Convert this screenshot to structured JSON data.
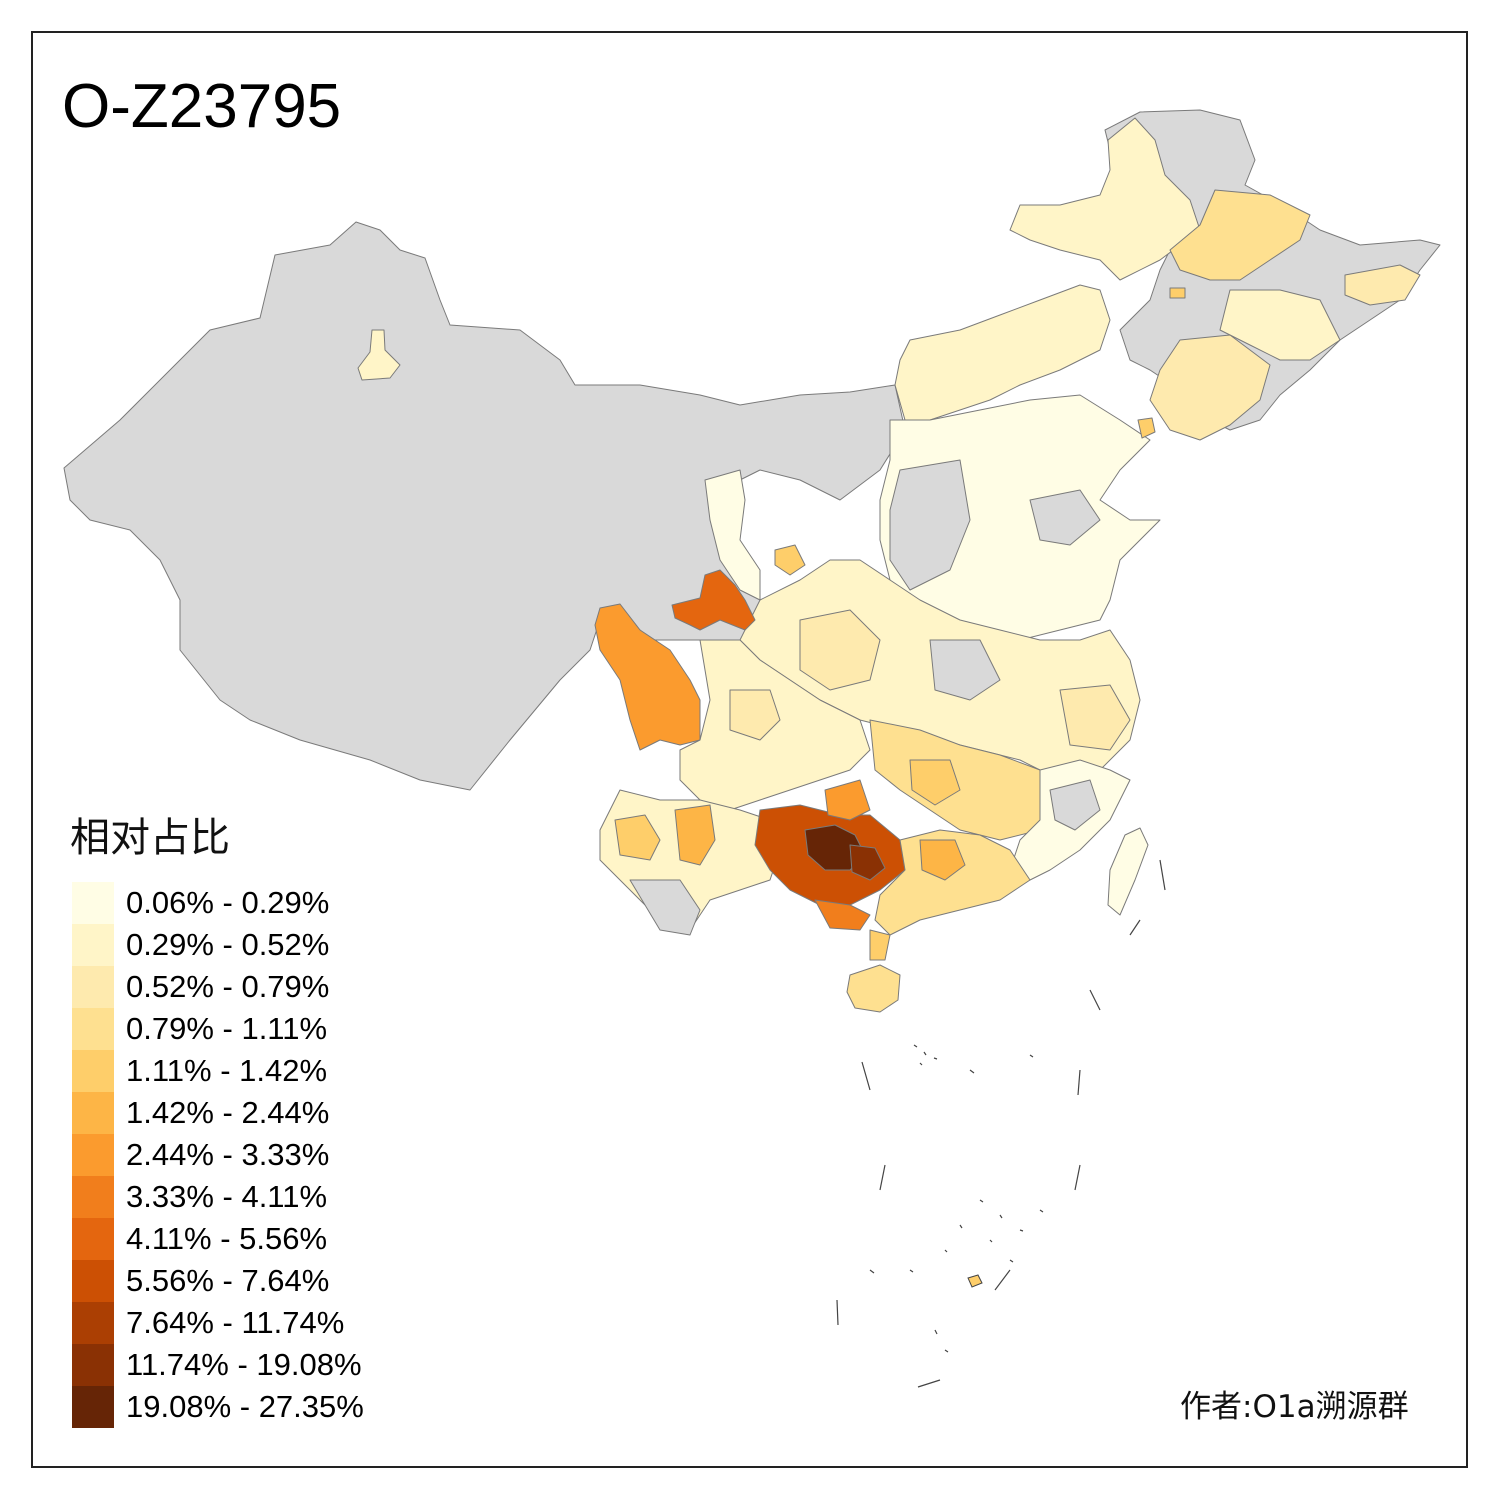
{
  "title": "O-Z23795",
  "legend": {
    "title": "相对占比",
    "classes": [
      {
        "label": "0.06% - 0.29%",
        "color": "#fffde5"
      },
      {
        "label": "0.29% - 0.52%",
        "color": "#fff5c8"
      },
      {
        "label": "0.52% - 0.79%",
        "color": "#feeaae"
      },
      {
        "label": "0.79% - 1.11%",
        "color": "#fee090"
      },
      {
        "label": "1.11% - 1.42%",
        "color": "#fece6a"
      },
      {
        "label": "1.42% - 2.44%",
        "color": "#fdb546"
      },
      {
        "label": "2.44% - 3.33%",
        "color": "#fb9b2e"
      },
      {
        "label": "3.33% - 4.11%",
        "color": "#f17e1c"
      },
      {
        "label": "4.11% - 5.56%",
        "color": "#e4660f"
      },
      {
        "label": "5.56% - 7.64%",
        "color": "#cc5004"
      },
      {
        "label": "7.64% - 11.74%",
        "color": "#ab3f03"
      },
      {
        "label": "11.74% - 19.08%",
        "color": "#8a3104"
      },
      {
        "label": "19.08% - 27.35%",
        "color": "#662506"
      }
    ]
  },
  "credit": "作者:O1a溯源群",
  "colors": {
    "no_data": "#d9d9d9",
    "border": "#222222"
  }
}
